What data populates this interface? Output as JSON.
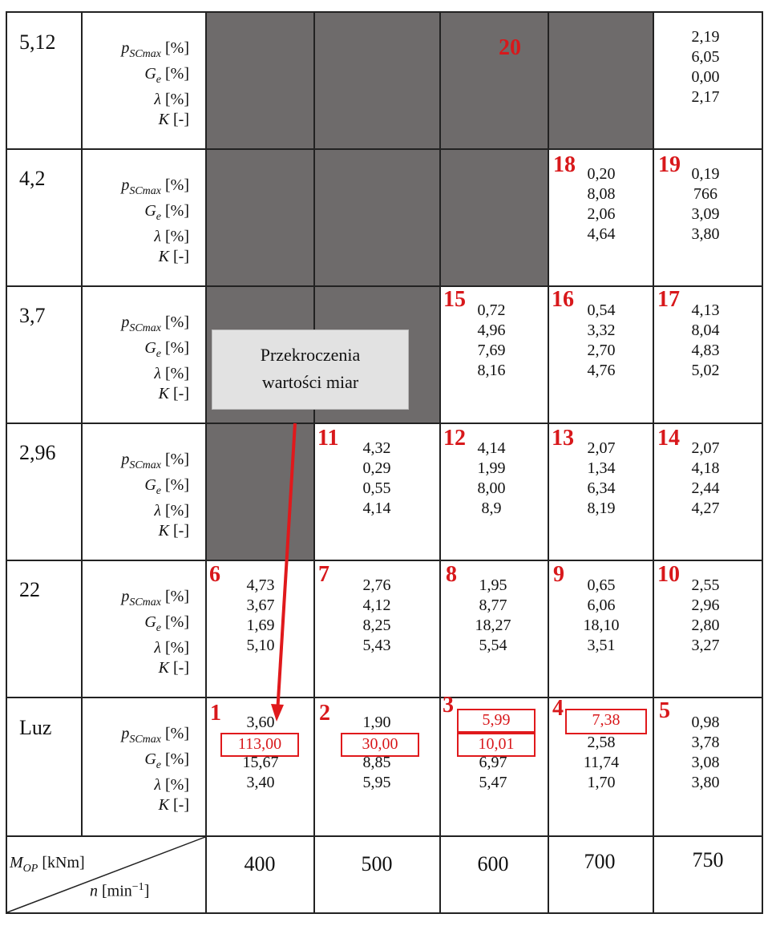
{
  "row_labels": [
    "5,12",
    "4,2",
    "3,7",
    "2,96",
    "22",
    "Luz"
  ],
  "metric_labels": {
    "p": {
      "sym": "p",
      "sub": "SCmax",
      "unit": " [%]"
    },
    "g": {
      "sym": "G",
      "sub": "e",
      "unit": " [%]"
    },
    "l": {
      "sym": "λ",
      "sub": "",
      "unit": " [%]"
    },
    "k": {
      "sym": "K",
      "sub": "",
      "unit": " [-]"
    }
  },
  "speeds": [
    "400",
    "500",
    "600",
    "700",
    "750"
  ],
  "corner": {
    "top": "M",
    "top_sub": "OP",
    "top_unit": " [kNm]",
    "bottom": "n",
    "bottom_unit": " [min",
    "bottom_sup": "−1",
    "bottom_end": "]"
  },
  "callout": {
    "line1": "Przekroczenia",
    "line2": "wartości miar"
  },
  "cells": {
    "c20": {
      "num": "20",
      "values": [
        "2,19",
        "6,05",
        "0,00",
        "2,17"
      ]
    },
    "c18": {
      "num": "18",
      "values": [
        "0,20",
        "8,08",
        "2,06",
        "4,64"
      ]
    },
    "c19": {
      "num": "19",
      "values": [
        "0,19",
        "766",
        "3,09",
        "3,80"
      ]
    },
    "c15": {
      "num": "15",
      "values": [
        "0,72",
        "4,96",
        "7,69",
        "8,16"
      ]
    },
    "c16": {
      "num": "16",
      "values": [
        "0,54",
        "3,32",
        "2,70",
        "4,76"
      ]
    },
    "c17": {
      "num": "17",
      "values": [
        "4,13",
        "8,04",
        "4,83",
        "5,02"
      ]
    },
    "c11": {
      "num": "11",
      "values": [
        "4,32",
        "0,29",
        "0,55",
        "4,14"
      ]
    },
    "c12": {
      "num": "12",
      "values": [
        "4,14",
        "1,99",
        "8,00",
        "8,9"
      ]
    },
    "c13": {
      "num": "13",
      "values": [
        "2,07",
        "1,34",
        "6,34",
        "8,19"
      ]
    },
    "c14": {
      "num": "14",
      "values": [
        "2,07",
        "4,18",
        "2,44",
        "4,27"
      ]
    },
    "c6": {
      "num": "6",
      "values": [
        "4,73",
        "3,67",
        "1,69",
        "5,10"
      ]
    },
    "c7": {
      "num": "7",
      "values": [
        "2,76",
        "4,12",
        "8,25",
        "5,43"
      ]
    },
    "c8": {
      "num": "8",
      "values": [
        "1,95",
        "8,77",
        "18,27",
        "5,54"
      ]
    },
    "c9": {
      "num": "9",
      "values": [
        "0,65",
        "6,06",
        "18,10",
        "3,51"
      ]
    },
    "c10": {
      "num": "10",
      "values": [
        "2,55",
        "2,96",
        "2,80",
        "3,27"
      ]
    },
    "c1": {
      "num": "1",
      "values": [
        "3,60",
        "113,00",
        "15,67",
        "3,40"
      ]
    },
    "c2": {
      "num": "2",
      "values": [
        "1,90",
        "30,00",
        "8,85",
        "5,95"
      ]
    },
    "c3": {
      "num": "3",
      "values": [
        "5,99",
        "10,01",
        "6,97",
        "5,47"
      ]
    },
    "c4": {
      "num": "4",
      "values": [
        "7,38",
        "2,58",
        "11,74",
        "1,70"
      ]
    },
    "c5": {
      "num": "5",
      "values": [
        "0,98",
        "3,78",
        "3,08",
        "3,80"
      ]
    }
  }
}
